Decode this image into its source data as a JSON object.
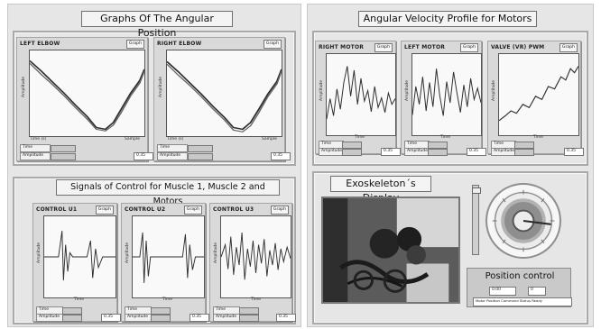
{
  "sections": {
    "angular_position": "Graphs Of The Angular Position",
    "angular_velocity": "Angular Velocity Profile for Motors",
    "signals": "Signals of Control for Muscle 1, Muscle 2 and Motors",
    "exoskeleton": "Exoskeleton´s Display"
  },
  "plot_control_label": "Graph",
  "legend": {
    "row1": "Time",
    "row2": "Amplitude"
  },
  "axis": {
    "amplitude": "Amplitude",
    "time": "Time"
  },
  "plots": {
    "left_elbow": {
      "title": "LEFT ELBOW",
      "value": "0.35",
      "x_start": "Time (s)",
      "x_end": "Sample"
    },
    "right_elbow": {
      "title": "RIGHT ELBOW",
      "value": "0.35",
      "x_start": "Time (s)",
      "x_end": "Sample"
    },
    "right_motor": {
      "title": "RIGHT MOTOR",
      "value": "0.35"
    },
    "left_motor": {
      "title": "LEFT MOTOR",
      "value": "0.35"
    },
    "valve_pwm": {
      "title": "VALVE (VR) PWM",
      "value": "0.35"
    },
    "control_u1": {
      "title": "CONTROL U1",
      "value": "0.35"
    },
    "control_u2": {
      "title": "CONTROL U2",
      "value": "0.35"
    },
    "control_u3": {
      "title": "CONTROL U3",
      "value": "0.35"
    }
  },
  "position_control": {
    "title": "Position control",
    "field1": "0.00",
    "field2": "0",
    "status": "Motor Position  Command  Status  Ready"
  },
  "colors": {
    "frame": "#e6e6e6",
    "card": "#d9d9d9",
    "plot_bg": "#f9f9f9",
    "trace": "#3a3a3a"
  }
}
